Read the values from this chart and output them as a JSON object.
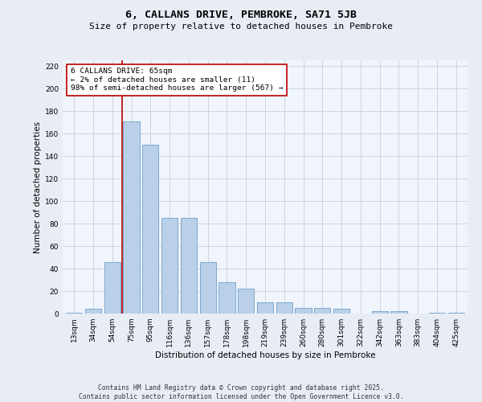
{
  "title": "6, CALLANS DRIVE, PEMBROKE, SA71 5JB",
  "subtitle": "Size of property relative to detached houses in Pembroke",
  "xlabel": "Distribution of detached houses by size in Pembroke",
  "ylabel": "Number of detached properties",
  "categories": [
    "13sqm",
    "34sqm",
    "54sqm",
    "75sqm",
    "95sqm",
    "116sqm",
    "136sqm",
    "157sqm",
    "178sqm",
    "198sqm",
    "219sqm",
    "239sqm",
    "260sqm",
    "280sqm",
    "301sqm",
    "322sqm",
    "342sqm",
    "363sqm",
    "383sqm",
    "404sqm",
    "425sqm"
  ],
  "values": [
    1,
    4,
    46,
    171,
    150,
    85,
    85,
    46,
    28,
    22,
    10,
    10,
    5,
    5,
    4,
    0,
    2,
    2,
    0,
    1,
    1
  ],
  "bar_color": "#BAD0E8",
  "bar_edge_color": "#6CA0CC",
  "vline_color": "#BB0000",
  "annotation_line1": "6 CALLANS DRIVE: 65sqm",
  "annotation_line2": "← 2% of detached houses are smaller (11)",
  "annotation_line3": "98% of semi-detached houses are larger (567) →",
  "annotation_box_color": "#BB0000",
  "ylim": [
    0,
    225
  ],
  "yticks": [
    0,
    20,
    40,
    60,
    80,
    100,
    120,
    140,
    160,
    180,
    200,
    220
  ],
  "bg_color": "#E8EDF5",
  "plot_bg_color": "#F0F4FB",
  "footer": "Contains HM Land Registry data © Crown copyright and database right 2025.\nContains public sector information licensed under the Open Government Licence v3.0.",
  "title_fontsize": 9.5,
  "subtitle_fontsize": 8,
  "axis_label_fontsize": 7.5,
  "tick_fontsize": 6.5,
  "annotation_fontsize": 6.8,
  "footer_fontsize": 5.8
}
